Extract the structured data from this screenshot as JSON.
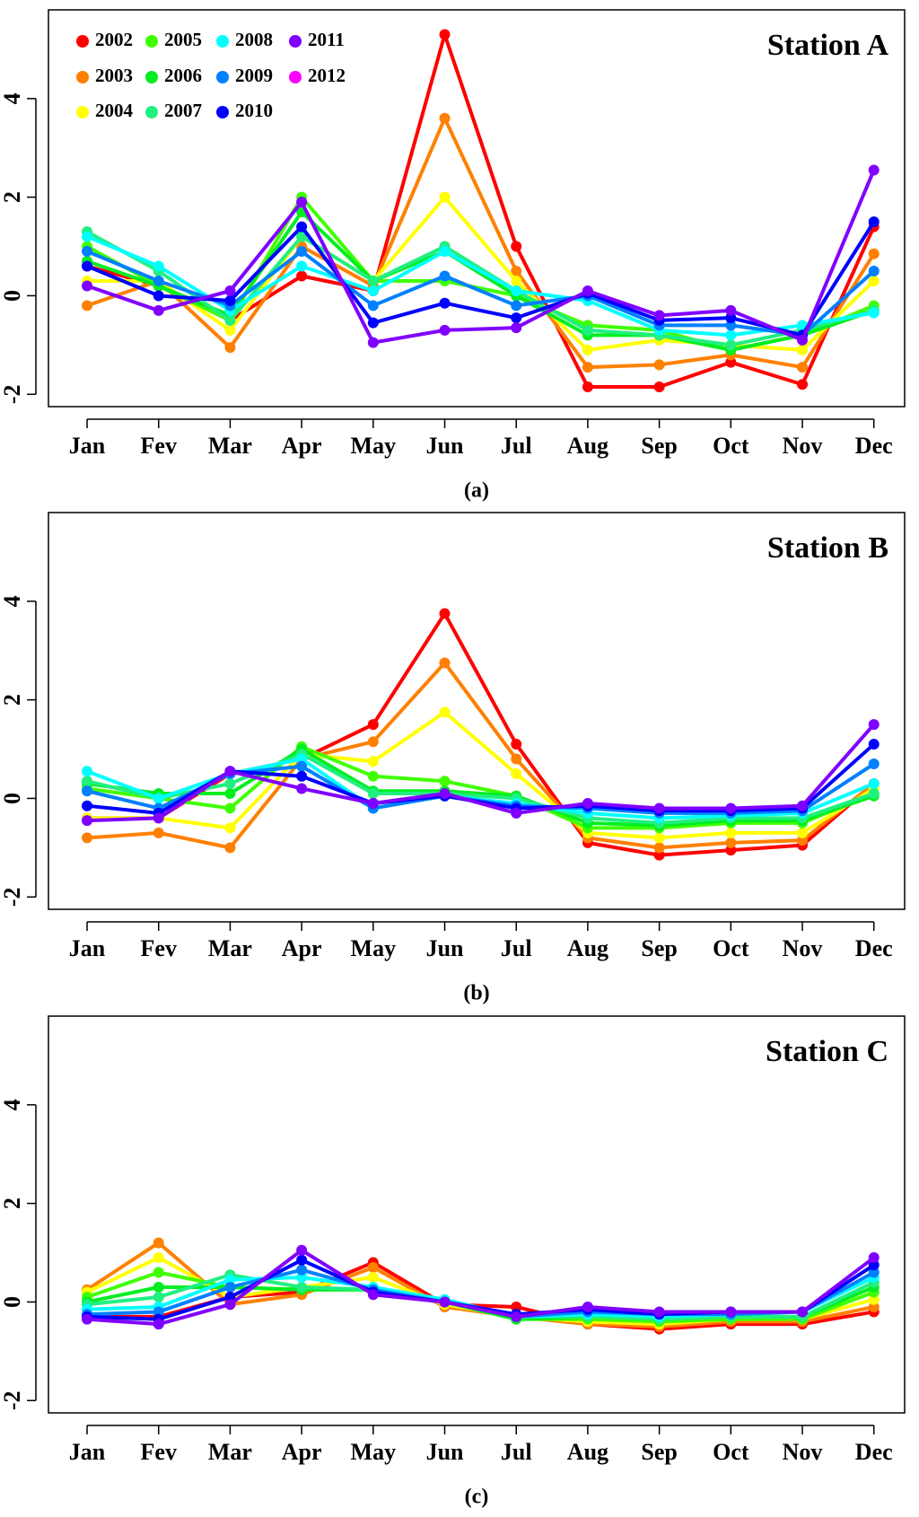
{
  "chart_data": [
    {
      "type": "line",
      "title": "Station A",
      "caption": "(a)",
      "legend": "top-left",
      "categories": [
        "Jan",
        "Fev",
        "Mar",
        "Apr",
        "May",
        "Jun",
        "Jul",
        "Aug",
        "Sep",
        "Oct",
        "Nov",
        "Dec"
      ],
      "ylim": [
        -2.25,
        5.8
      ],
      "yticks": [
        -2,
        0,
        2,
        4
      ],
      "series": [
        {
          "name": "2002",
          "color": "#ff0000",
          "values": [
            0.6,
            0.2,
            -0.5,
            0.4,
            0.1,
            5.3,
            1.0,
            -1.85,
            -1.85,
            -1.35,
            -1.8,
            1.4
          ]
        },
        {
          "name": "2003",
          "color": "#ff8000",
          "values": [
            -0.2,
            0.3,
            -1.05,
            1.0,
            0.2,
            3.6,
            0.5,
            -1.45,
            -1.4,
            -1.2,
            -1.45,
            0.85
          ]
        },
        {
          "name": "2004",
          "color": "#ffff00",
          "values": [
            0.3,
            0.3,
            -0.7,
            1.2,
            0.3,
            2.0,
            0.3,
            -1.1,
            -0.9,
            -1.0,
            -1.1,
            0.3
          ]
        },
        {
          "name": "2005",
          "color": "#40ff00",
          "values": [
            1.0,
            0.2,
            -0.5,
            2.0,
            0.3,
            0.3,
            0.0,
            -0.6,
            -0.7,
            -1.1,
            -0.8,
            -0.2
          ]
        },
        {
          "name": "2006",
          "color": "#00ee20",
          "values": [
            0.7,
            0.2,
            -0.4,
            1.7,
            0.3,
            0.9,
            0.0,
            -0.8,
            -0.8,
            -1.1,
            -0.8,
            -0.3
          ]
        },
        {
          "name": "2007",
          "color": "#20f080",
          "values": [
            1.3,
            0.5,
            -0.5,
            1.2,
            0.3,
            1.0,
            0.1,
            -0.7,
            -0.8,
            -1.0,
            -0.7,
            -0.3
          ]
        },
        {
          "name": "2008",
          "color": "#00ffff",
          "values": [
            1.2,
            0.6,
            -0.3,
            0.6,
            0.1,
            0.9,
            0.1,
            -0.1,
            -0.7,
            -0.8,
            -0.6,
            -0.35
          ]
        },
        {
          "name": "2009",
          "color": "#0080ff",
          "values": [
            0.9,
            0.3,
            -0.2,
            0.9,
            -0.2,
            0.4,
            -0.2,
            0.0,
            -0.6,
            -0.6,
            -0.8,
            0.5
          ]
        },
        {
          "name": "2010",
          "color": "#0000ff",
          "values": [
            0.6,
            0.0,
            -0.1,
            1.4,
            -0.55,
            -0.15,
            -0.45,
            0.05,
            -0.5,
            -0.45,
            -0.8,
            1.5
          ]
        },
        {
          "name": "2011",
          "color": "#8000ff",
          "values": [
            0.2,
            -0.3,
            0.1,
            1.9,
            -0.95,
            -0.7,
            -0.65,
            0.1,
            -0.4,
            -0.3,
            -0.9,
            2.55
          ]
        },
        {
          "name": "2012",
          "color": "#ff00ff",
          "values": [
            null,
            null,
            null,
            null,
            null,
            null,
            null,
            null,
            null,
            null,
            null,
            null
          ]
        }
      ]
    },
    {
      "type": "line",
      "title": "Station B",
      "caption": "(b)",
      "categories": [
        "Jan",
        "Fev",
        "Mar",
        "Apr",
        "May",
        "Jun",
        "Jul",
        "Aug",
        "Sep",
        "Oct",
        "Nov",
        "Dec"
      ],
      "ylim": [
        -2.25,
        5.8
      ],
      "yticks": [
        -2,
        0,
        2,
        4
      ],
      "series": [
        {
          "color": "#ff0000",
          "values": [
            -0.4,
            -0.4,
            0.5,
            0.8,
            1.5,
            3.75,
            1.1,
            -0.9,
            -1.15,
            -1.05,
            -0.95,
            0.3
          ]
        },
        {
          "color": "#ff8000",
          "values": [
            -0.8,
            -0.7,
            -1.0,
            0.8,
            1.15,
            2.75,
            0.8,
            -0.8,
            -1.0,
            -0.9,
            -0.85,
            0.3
          ]
        },
        {
          "color": "#ffff00",
          "values": [
            -0.4,
            -0.4,
            -0.6,
            0.9,
            0.75,
            1.75,
            0.5,
            -0.7,
            -0.8,
            -0.7,
            -0.7,
            0.2
          ]
        },
        {
          "color": "#40ff00",
          "values": [
            0.2,
            0.0,
            -0.2,
            1.05,
            0.45,
            0.35,
            0.05,
            -0.6,
            -0.6,
            -0.5,
            -0.5,
            0.1
          ]
        },
        {
          "color": "#00ee20",
          "values": [
            0.3,
            0.1,
            0.1,
            1.0,
            0.15,
            0.15,
            0.05,
            -0.5,
            -0.55,
            -0.45,
            -0.45,
            0.05
          ]
        },
        {
          "color": "#20f080",
          "values": [
            0.35,
            0.0,
            0.3,
            0.9,
            0.1,
            0.1,
            0.0,
            -0.4,
            -0.5,
            -0.4,
            -0.4,
            0.1
          ]
        },
        {
          "color": "#00ffff",
          "values": [
            0.55,
            0.0,
            0.5,
            0.8,
            -0.2,
            0.05,
            -0.1,
            -0.3,
            -0.4,
            -0.35,
            -0.3,
            0.3
          ]
        },
        {
          "color": "#0080ff",
          "values": [
            0.15,
            -0.2,
            0.5,
            0.65,
            -0.2,
            0.05,
            -0.15,
            -0.2,
            -0.3,
            -0.3,
            -0.25,
            0.7
          ]
        },
        {
          "color": "#0000ff",
          "values": [
            -0.15,
            -0.3,
            0.55,
            0.45,
            -0.1,
            0.05,
            -0.2,
            -0.15,
            -0.25,
            -0.25,
            -0.2,
            1.1
          ]
        },
        {
          "color": "#8000ff",
          "values": [
            -0.45,
            -0.4,
            0.55,
            0.2,
            -0.1,
            0.1,
            -0.3,
            -0.1,
            -0.2,
            -0.2,
            -0.15,
            1.5
          ]
        }
      ]
    },
    {
      "type": "line",
      "title": "Station C",
      "caption": "(c)",
      "categories": [
        "Jan",
        "Fev",
        "Mar",
        "Apr",
        "May",
        "Jun",
        "Jul",
        "Aug",
        "Sep",
        "Oct",
        "Nov",
        "Dec"
      ],
      "ylim": [
        -2.25,
        5.8
      ],
      "yticks": [
        -2,
        0,
        2,
        4
      ],
      "series": [
        {
          "color": "#ff0000",
          "values": [
            -0.3,
            -0.3,
            0.1,
            0.2,
            0.8,
            -0.05,
            -0.1,
            -0.45,
            -0.55,
            -0.45,
            -0.45,
            -0.2
          ]
        },
        {
          "color": "#ff8000",
          "values": [
            0.25,
            1.2,
            -0.05,
            0.15,
            0.7,
            -0.1,
            -0.3,
            -0.45,
            -0.5,
            -0.4,
            -0.4,
            -0.1
          ]
        },
        {
          "color": "#ffff00",
          "values": [
            0.2,
            0.9,
            0.1,
            0.3,
            0.5,
            -0.05,
            -0.3,
            -0.4,
            -0.45,
            -0.35,
            -0.35,
            0.05
          ]
        },
        {
          "color": "#40ff00",
          "values": [
            0.1,
            0.6,
            0.3,
            0.25,
            0.25,
            0.0,
            -0.35,
            -0.35,
            -0.4,
            -0.35,
            -0.35,
            0.2
          ]
        },
        {
          "color": "#00ee20",
          "values": [
            0.0,
            0.3,
            0.3,
            0.25,
            0.25,
            0.0,
            -0.35,
            -0.3,
            -0.35,
            -0.3,
            -0.3,
            0.3
          ]
        },
        {
          "color": "#20f080",
          "values": [
            -0.05,
            0.1,
            0.55,
            0.3,
            0.25,
            0.0,
            -0.3,
            -0.3,
            -0.35,
            -0.3,
            -0.3,
            0.4
          ]
        },
        {
          "color": "#00ffff",
          "values": [
            -0.15,
            -0.1,
            0.45,
            0.5,
            0.3,
            0.05,
            -0.3,
            -0.25,
            -0.3,
            -0.25,
            -0.2,
            0.5
          ]
        },
        {
          "color": "#0080ff",
          "values": [
            -0.25,
            -0.2,
            0.3,
            0.65,
            0.25,
            0.0,
            -0.3,
            -0.2,
            -0.25,
            -0.25,
            -0.2,
            0.6
          ]
        },
        {
          "color": "#0000ff",
          "values": [
            -0.3,
            -0.35,
            0.1,
            0.85,
            0.2,
            0.0,
            -0.25,
            -0.15,
            -0.25,
            -0.2,
            -0.2,
            0.75
          ]
        },
        {
          "color": "#8000ff",
          "values": [
            -0.35,
            -0.45,
            -0.05,
            1.05,
            0.15,
            0.0,
            -0.3,
            -0.1,
            -0.2,
            -0.2,
            -0.2,
            0.9
          ]
        }
      ]
    }
  ]
}
